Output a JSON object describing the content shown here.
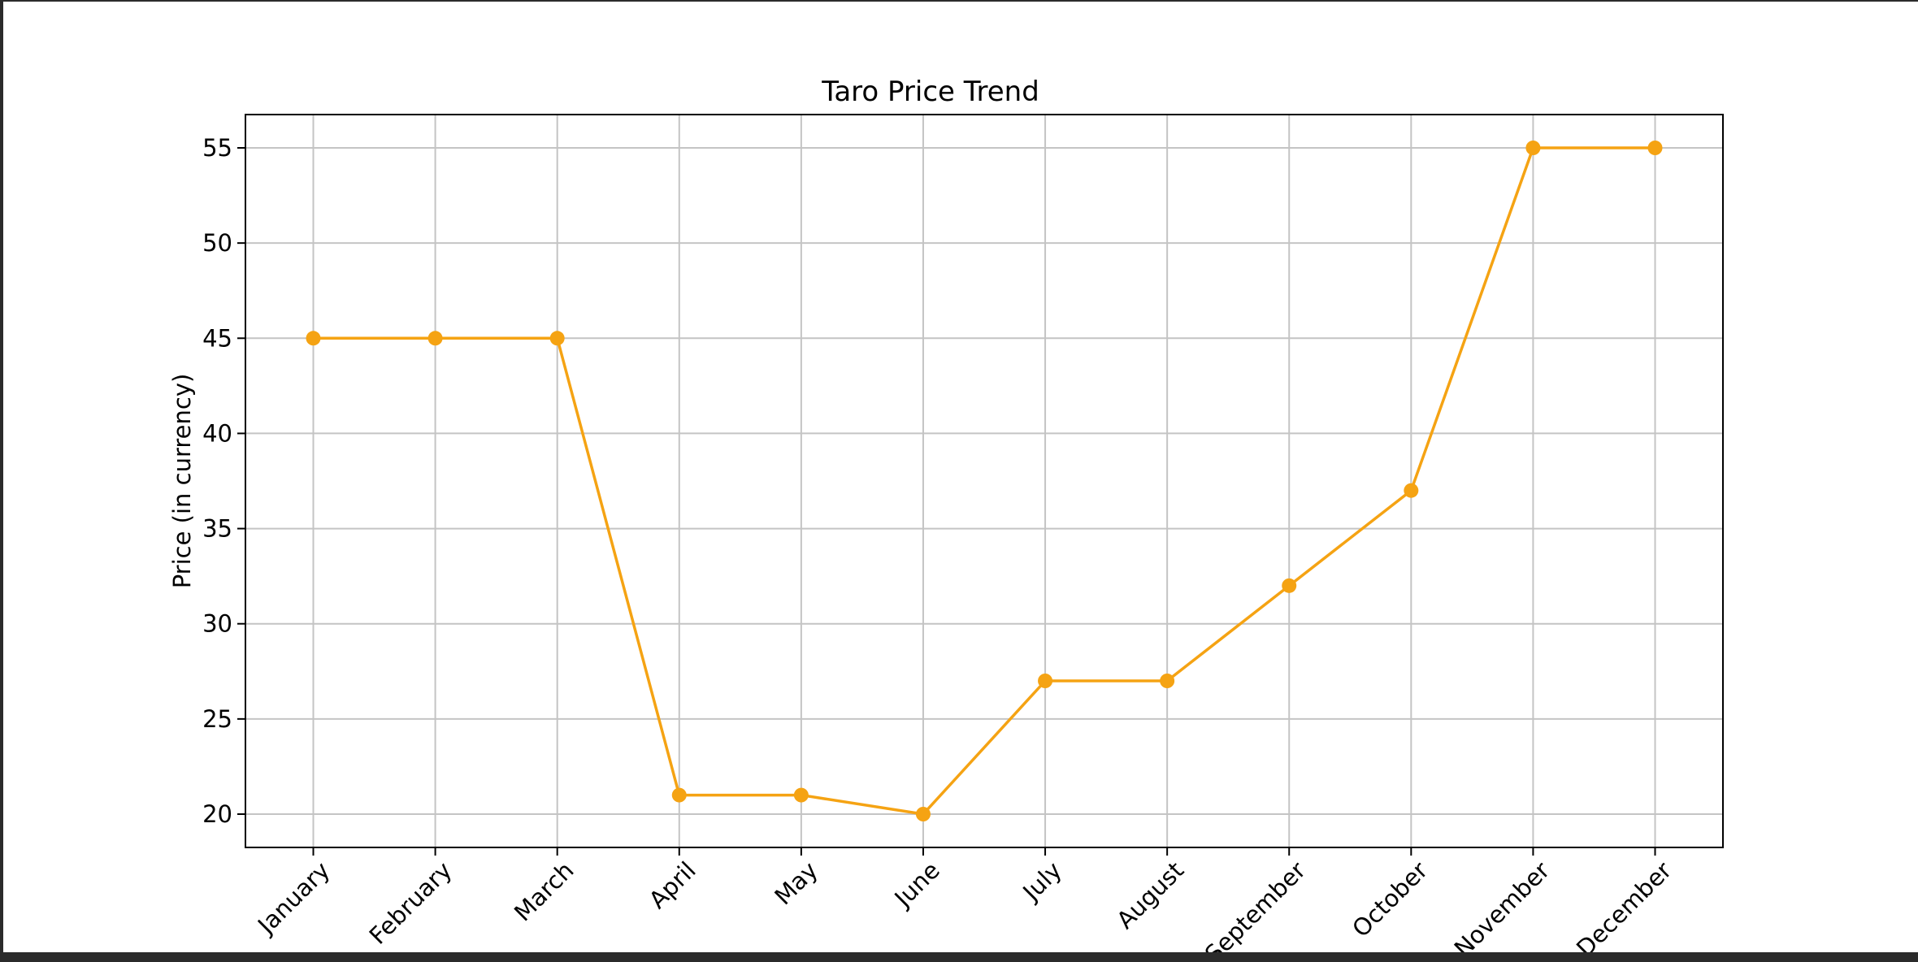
{
  "chart_data": {
    "type": "line",
    "title": "Taro Price Trend",
    "xlabel": "",
    "ylabel": "Price (in currency)",
    "categories": [
      "January",
      "February",
      "March",
      "April",
      "May",
      "June",
      "July",
      "August",
      "September",
      "October",
      "November",
      "December"
    ],
    "series": [
      {
        "values": [
          45,
          45,
          45,
          21,
          21,
          20,
          27,
          27,
          32,
          37,
          55,
          55
        ],
        "color": "#f5a313",
        "marker": "circle"
      }
    ],
    "y_ticks": [
      20,
      25,
      30,
      35,
      40,
      45,
      50,
      55
    ],
    "ylim": [
      18.25,
      56.75
    ],
    "grid": true,
    "legend": "none"
  }
}
